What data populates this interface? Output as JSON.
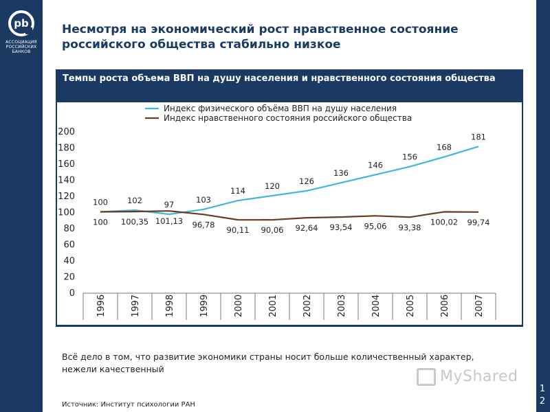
{
  "logo": {
    "mark": "pb",
    "lines": [
      "АССОЦИАЦИЯ",
      "РОССИЙСКИХ",
      "БАНКОВ"
    ]
  },
  "title": "Несмотря на экономический рост нравственное состояние российского общества стабильно низкое",
  "note": "Всё дело в том, что развитие экономики страны носит больше количественный характер, нежели качественный",
  "source": "Источник: Институт психологии РАН",
  "page_number": "12",
  "watermark": "MyShared",
  "colors": {
    "brand_navy": "#1b3a63",
    "gdp_line": "#3fb6dd",
    "moral_line": "#6b3a1f"
  },
  "chart_data": {
    "type": "line",
    "title": "Темпы роста объема ВВП на душу населения и нравственного состояния общества",
    "categories": [
      "1996",
      "1997",
      "1998",
      "1999",
      "2000",
      "2001",
      "2002",
      "2003",
      "2004",
      "2005",
      "2006",
      "2007"
    ],
    "series": [
      {
        "name": "Индекс физического объёма ВВП на душу населения",
        "values": [
          100,
          102,
          97,
          103,
          114,
          120,
          126,
          136,
          146,
          156,
          168,
          181
        ],
        "labels": [
          "100",
          "102",
          "97",
          "103",
          "114",
          "120",
          "126",
          "136",
          "146",
          "156",
          "168",
          "181"
        ],
        "color": "#3fb6dd"
      },
      {
        "name": "Индекс нравственного состояния российского общества",
        "values": [
          100,
          100.35,
          101.13,
          96.78,
          90.11,
          90.06,
          92.64,
          93.54,
          95.06,
          93.38,
          100.02,
          99.74
        ],
        "labels": [
          "100",
          "100,35",
          "101,13",
          "96,78",
          "90,11",
          "90,06",
          "92,64",
          "93,54",
          "95,06",
          "93,38",
          "100,02",
          "99,74"
        ],
        "color": "#6b3a1f"
      }
    ],
    "yticks": [
      "0",
      "20",
      "40",
      "60",
      "80",
      "100",
      "120",
      "140",
      "160",
      "180",
      "200"
    ],
    "ylim": [
      0,
      200
    ],
    "grid": false,
    "legend": "top"
  }
}
